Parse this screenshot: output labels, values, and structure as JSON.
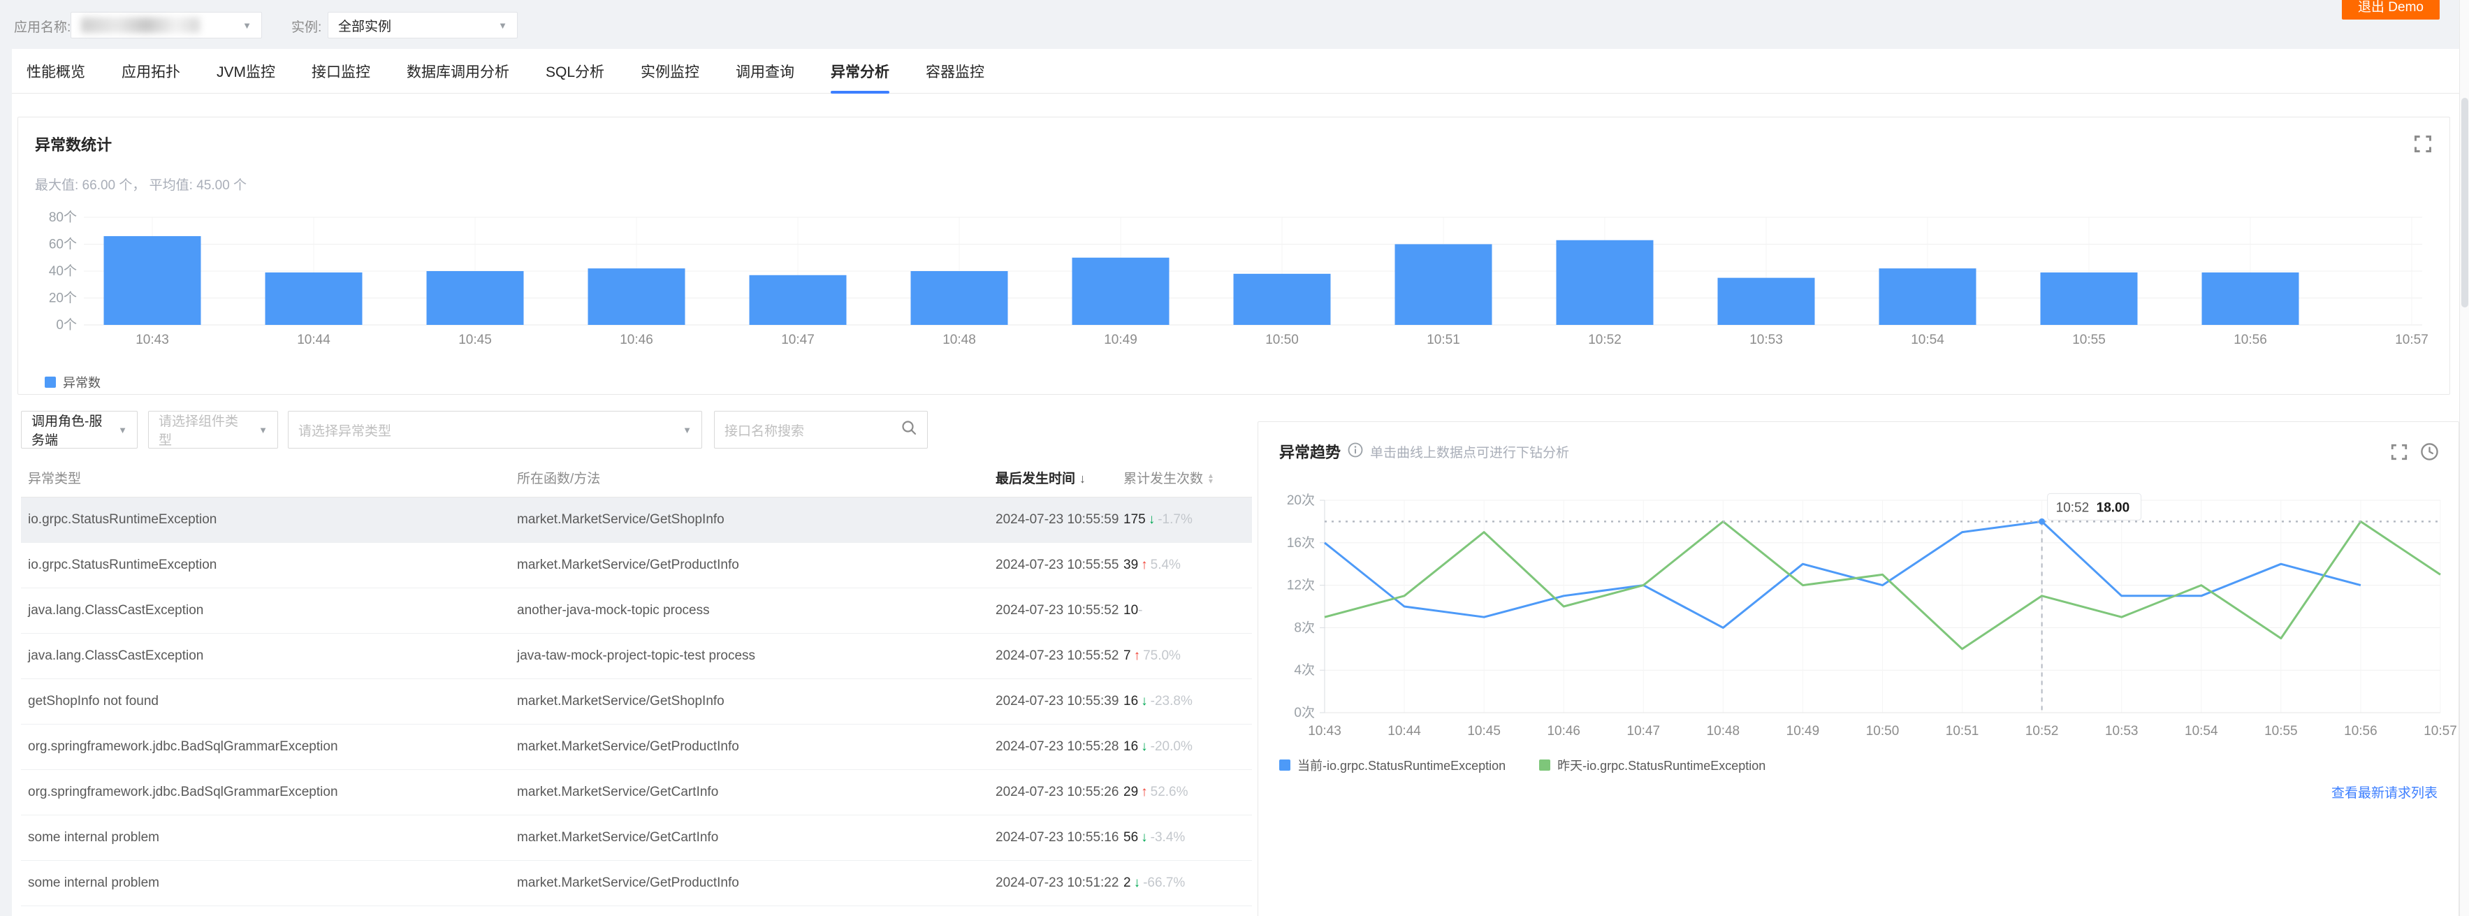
{
  "topbar": {
    "app_label": "应用名称:",
    "instance_label": "实例:",
    "instance_value": "全部实例",
    "exit_button": "退出 Demo"
  },
  "tabs": {
    "items": [
      "性能概览",
      "应用拓扑",
      "JVM监控",
      "接口监控",
      "数据库调用分析",
      "SQL分析",
      "实例监控",
      "调用查询",
      "异常分析",
      "容器监控"
    ],
    "active": "异常分析"
  },
  "stats_panel": {
    "title": "异常数统计",
    "summary": "最大值: 66.00 个， 平均值: 45.00 个"
  },
  "filters": {
    "role_value": "调用角色-服务端",
    "component_placeholder": "请选择组件类型",
    "exception_placeholder": "请选择异常类型",
    "search_placeholder": "接口名称搜索"
  },
  "table": {
    "columns": [
      "异常类型",
      "所在函数/方法",
      "最后发生时间",
      "累计发生次数"
    ],
    "sorted_column": "最后发生时间",
    "selected_row": 0,
    "rows": [
      {
        "type": "io.grpc.StatusRuntimeException",
        "method": "market.MarketService/GetShopInfo",
        "time": "2024-07-23 10:55:59",
        "count": "175",
        "trend": "down",
        "pct": "-1.7%"
      },
      {
        "type": "io.grpc.StatusRuntimeException",
        "method": "market.MarketService/GetProductInfo",
        "time": "2024-07-23 10:55:55",
        "count": "39",
        "trend": "up",
        "pct": "5.4%"
      },
      {
        "type": "java.lang.ClassCastException",
        "method": "another-java-mock-topic process",
        "time": "2024-07-23 10:55:52",
        "count": "10",
        "trend": "none",
        "pct": "-"
      },
      {
        "type": "java.lang.ClassCastException",
        "method": "java-taw-mock-project-topic-test process",
        "time": "2024-07-23 10:55:52",
        "count": "7",
        "trend": "up",
        "pct": "75.0%"
      },
      {
        "type": "getShopInfo not found",
        "method": "market.MarketService/GetShopInfo",
        "time": "2024-07-23 10:55:39",
        "count": "16",
        "trend": "down",
        "pct": "-23.8%"
      },
      {
        "type": "org.springframework.jdbc.BadSqlGrammarException",
        "method": "market.MarketService/GetProductInfo",
        "time": "2024-07-23 10:55:28",
        "count": "16",
        "trend": "down",
        "pct": "-20.0%"
      },
      {
        "type": "org.springframework.jdbc.BadSqlGrammarException",
        "method": "market.MarketService/GetCartInfo",
        "time": "2024-07-23 10:55:26",
        "count": "29",
        "trend": "up",
        "pct": "52.6%"
      },
      {
        "type": "some internal problem",
        "method": "market.MarketService/GetCartInfo",
        "time": "2024-07-23 10:55:16",
        "count": "56",
        "trend": "down",
        "pct": "-3.4%"
      },
      {
        "type": "some internal problem",
        "method": "market.MarketService/GetProductInfo",
        "time": "2024-07-23 10:51:22",
        "count": "2",
        "trend": "down",
        "pct": "-66.7%"
      }
    ]
  },
  "trend_panel": {
    "title": "异常趋势",
    "hint": "单击曲线上数据点可进行下钻分析",
    "link": "查看最新请求列表"
  },
  "chart_data": [
    {
      "type": "bar",
      "title": "异常数统计",
      "name": "异常数",
      "unit": "个",
      "categories": [
        "10:43",
        "10:44",
        "10:45",
        "10:46",
        "10:47",
        "10:48",
        "10:49",
        "10:50",
        "10:51",
        "10:52",
        "10:53",
        "10:54",
        "10:55",
        "10:56",
        "10:57"
      ],
      "values": [
        66,
        39,
        40,
        42,
        37,
        40,
        50,
        38,
        60,
        63,
        35,
        42,
        39,
        39,
        null
      ],
      "ylim": [
        0,
        80
      ],
      "ystep": 20,
      "color": "#4d9af8",
      "max_value": 66.0,
      "avg_value": 45.0,
      "legend_position": "bottom-left",
      "grid": true
    },
    {
      "type": "line",
      "title": "异常趋势",
      "unit": "次",
      "categories": [
        "10:43",
        "10:44",
        "10:45",
        "10:46",
        "10:47",
        "10:48",
        "10:49",
        "10:50",
        "10:51",
        "10:52",
        "10:53",
        "10:54",
        "10:55",
        "10:56",
        "10:57"
      ],
      "series": [
        {
          "name": "当前-io.grpc.StatusRuntimeException",
          "color": "#4d9af8",
          "values": [
            16,
            10,
            9,
            11,
            12,
            8,
            14,
            12,
            17,
            18,
            11,
            11,
            14,
            12,
            null
          ]
        },
        {
          "name": "昨天-io.grpc.StatusRuntimeException",
          "color": "#7ec67a",
          "values": [
            9,
            11,
            17,
            10,
            12,
            18,
            12,
            13,
            6,
            11,
            9,
            12,
            7,
            18,
            13
          ]
        }
      ],
      "ylim": [
        0,
        20
      ],
      "ystep": 4,
      "tooltip": {
        "category": "10:52",
        "value": "18.00",
        "series_index": 0,
        "point_value": 18
      },
      "legend_position": "bottom-left",
      "grid": true
    }
  ]
}
